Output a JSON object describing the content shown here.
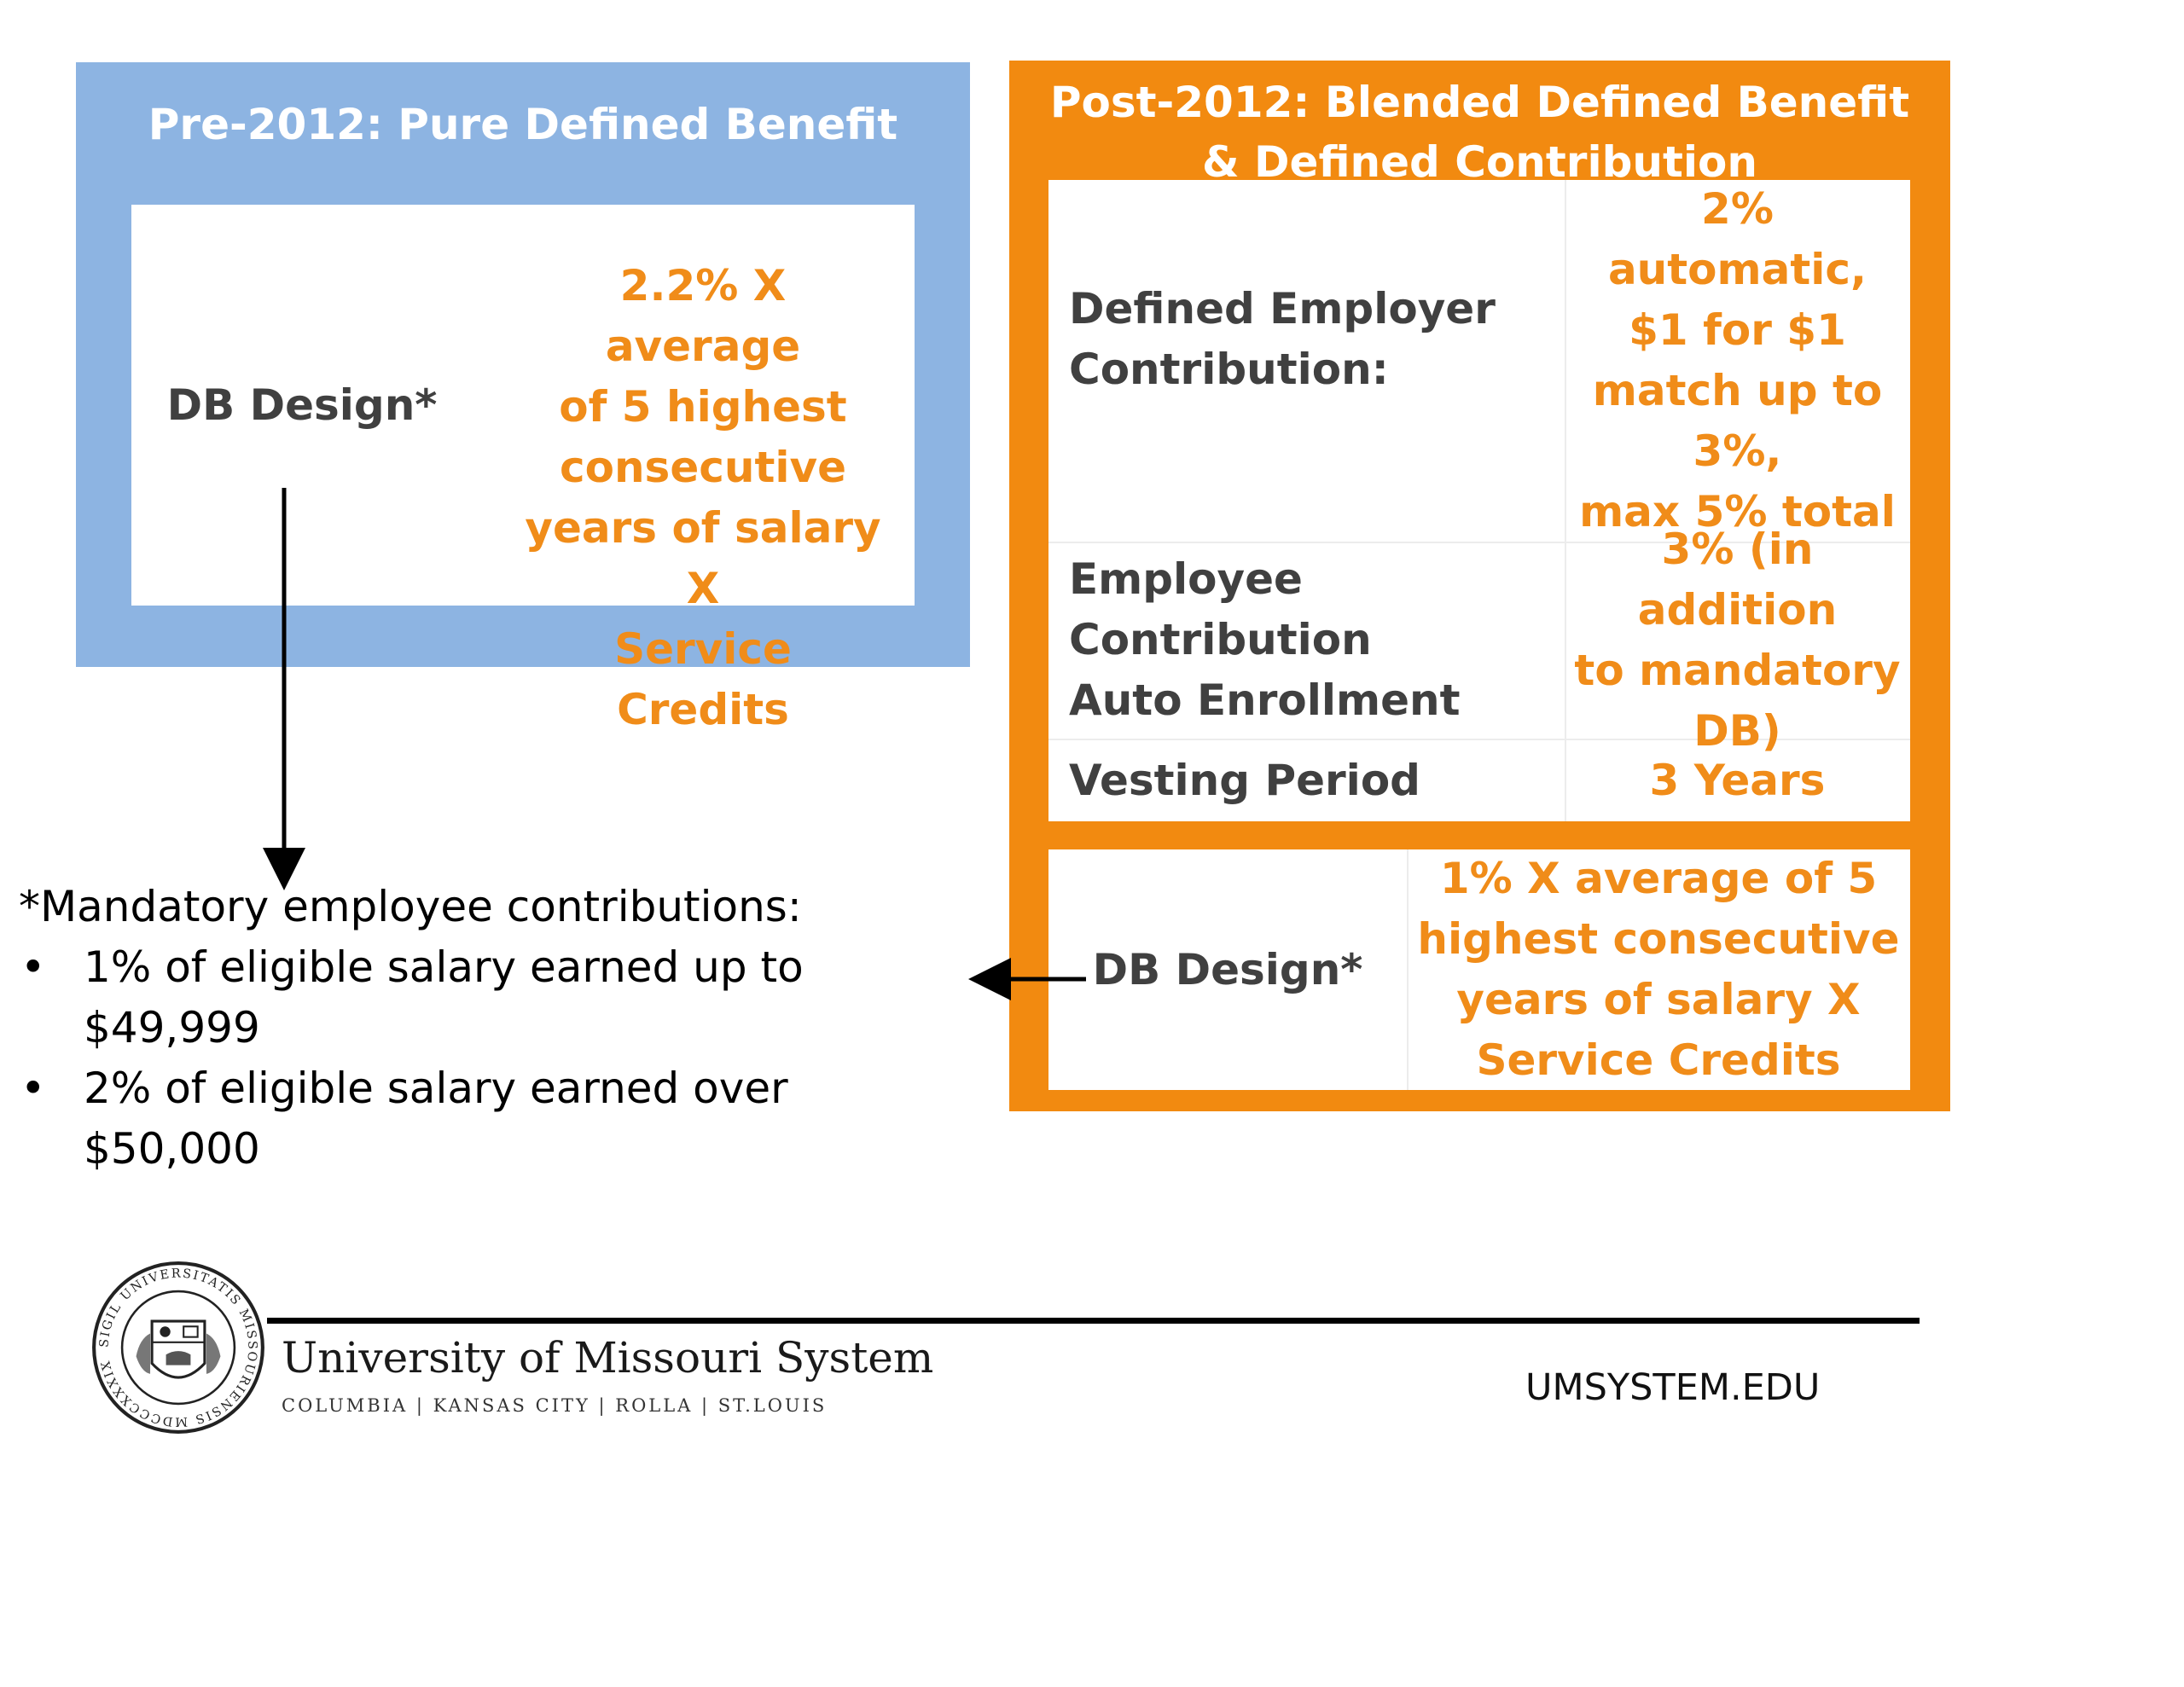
{
  "pre2012": {
    "title": "Pre-2012: Pure Defined Benefit",
    "db_label": "DB Design*",
    "db_value_lines": [
      "2.2% X average",
      "of 5 highest",
      "consecutive",
      "years of salary X",
      "Service Credits"
    ]
  },
  "post2012": {
    "title_lines": [
      "Post-2012: Blended Defined Benefit",
      "& Defined Contribution"
    ],
    "rows": [
      {
        "label_lines": [
          "Defined Employer",
          "Contribution:"
        ],
        "value_lines": [
          "2% automatic,",
          "$1 for $1",
          "match up to",
          "3%,",
          "max 5% total"
        ]
      },
      {
        "label_lines": [
          "Employee Contribution",
          "Auto Enrollment"
        ],
        "value_lines": [
          "3% (in addition",
          "to mandatory",
          "DB)"
        ]
      },
      {
        "label_lines": [
          "Vesting Period"
        ],
        "value_lines": [
          "3 Years"
        ]
      }
    ],
    "db_label": "DB Design*",
    "db_value_lines": [
      "1% X average of 5",
      "highest consecutive",
      "years of salary X",
      "Service Credits"
    ]
  },
  "note": {
    "heading": "*Mandatory employee contributions:",
    "bullets": [
      "1% of eligible salary earned up to $49,999",
      "2% of eligible salary earned over $50,000"
    ]
  },
  "footer": {
    "university": "University of Missouri System",
    "campuses": "COLUMBIA | KANSAS CITY | ROLLA | ST.LOUIS",
    "website": "UMSYSTEM.EDU",
    "seal_ring_text": "SIGIL UNIVERSITATIS MISSOURIENSIS MDCCCXXXIX"
  },
  "colors": {
    "pre_panel": "#8db4e2",
    "post_panel": "#f28a10",
    "accent_text": "#f08c19",
    "label_text": "#404040"
  }
}
